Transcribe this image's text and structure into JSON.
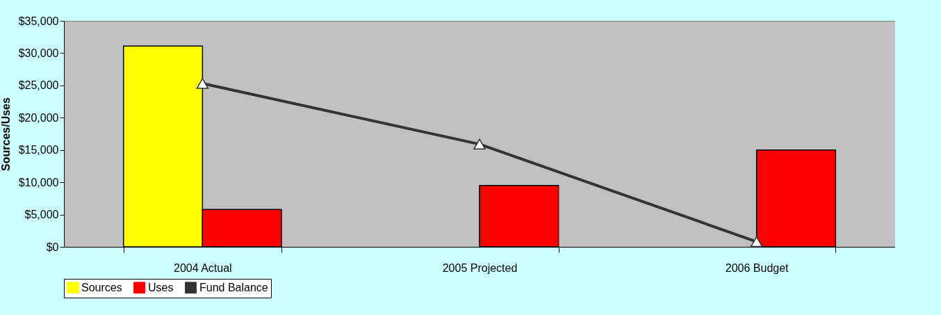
{
  "chart_data": {
    "type": "bar",
    "ylabel": "Sources/Uses",
    "categories": [
      "2004 Actual",
      "2005  Projected",
      "2006 Budget"
    ],
    "series": [
      {
        "name": "Sources",
        "color": "#ffff00",
        "values": [
          31100,
          null,
          null
        ]
      },
      {
        "name": "Uses",
        "color": "#ff0000",
        "values": [
          5800,
          9500,
          15000
        ]
      },
      {
        "name": "Fund Balance",
        "color": "#333333",
        "type": "line",
        "values": [
          25300,
          15900,
          800
        ]
      }
    ],
    "ylim": [
      0,
      35000
    ],
    "yticks": [
      {
        "value": 0,
        "label": "$0"
      },
      {
        "value": 5000,
        "label": "$5,000"
      },
      {
        "value": 10000,
        "label": "$10,000"
      },
      {
        "value": 15000,
        "label": "$15,000"
      },
      {
        "value": 20000,
        "label": "$20,000"
      },
      {
        "value": 25000,
        "label": "$25,000"
      },
      {
        "value": 30000,
        "label": "$30,000"
      },
      {
        "value": 35000,
        "label": "$35,000"
      }
    ],
    "marker": "triangle",
    "legend": "bottom",
    "grid": false
  }
}
